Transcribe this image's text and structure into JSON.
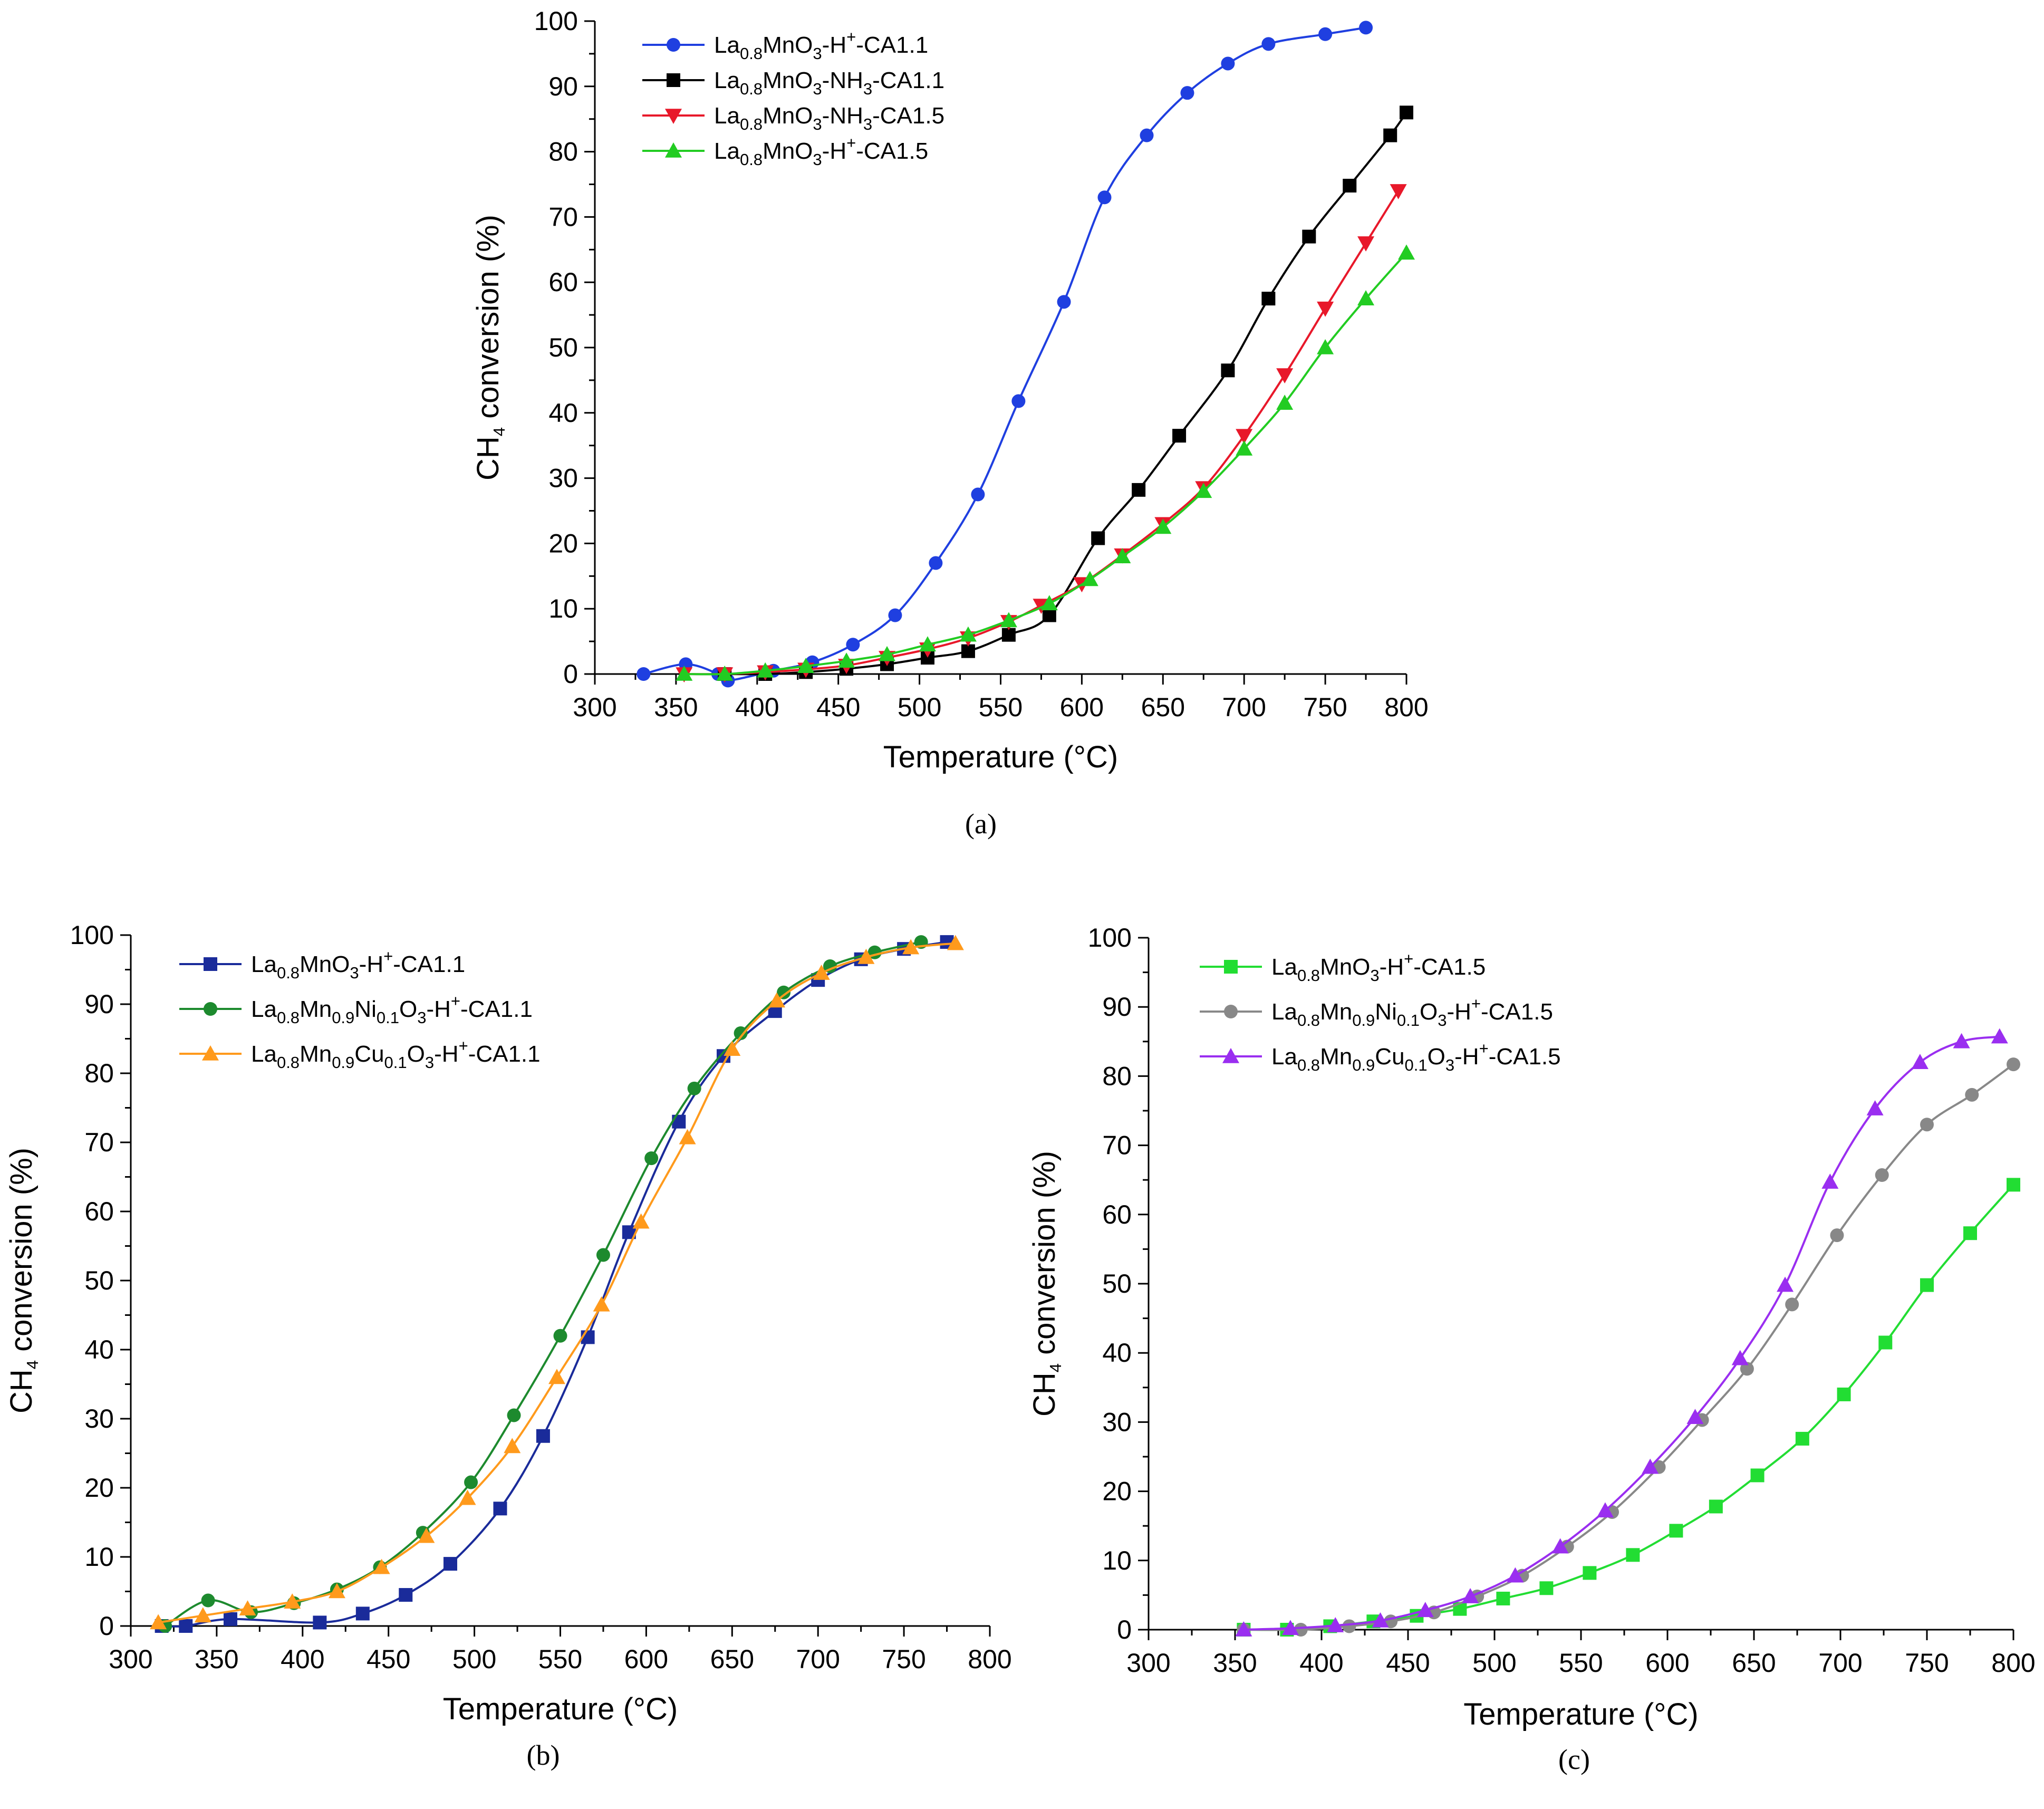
{
  "figure": {
    "panel_labels": [
      "(a)",
      "(b)",
      "(c)"
    ]
  },
  "chart_data": [
    {
      "panel": "(a)",
      "type": "line",
      "xlabel": "Temperature (°C)",
      "ylabel": "CH4 conversion (%)",
      "ylabel_parts": [
        "CH",
        "4",
        " conversion (%)"
      ],
      "xlim": [
        300,
        800
      ],
      "ylim": [
        0,
        100
      ],
      "xticks": [
        300,
        350,
        400,
        450,
        500,
        550,
        600,
        650,
        700,
        750,
        800
      ],
      "yticks": [
        0,
        10,
        20,
        30,
        40,
        50,
        60,
        70,
        80,
        90,
        100
      ],
      "grid": false,
      "legend_position": "top-left",
      "series": [
        {
          "name": "La0.8MnO3-H+-CA1.1",
          "label_parts": [
            [
              "La",
              "n"
            ],
            [
              "0.8",
              "sub"
            ],
            [
              "MnO",
              "n"
            ],
            [
              "3",
              "sub"
            ],
            [
              "-H",
              "n"
            ],
            [
              "+",
              "sup"
            ],
            [
              "-CA1.1",
              "n"
            ]
          ],
          "color": "#1f3fe0",
          "marker": "circle",
          "x": [
            330,
            356,
            376,
            382,
            410,
            434,
            459,
            485,
            510,
            536,
            561,
            589,
            614,
            640,
            665,
            690,
            715,
            750,
            775
          ],
          "y": [
            0.0,
            1.5,
            0.0,
            -1.0,
            0.5,
            1.8,
            4.5,
            9.0,
            17.0,
            27.5,
            41.8,
            57.0,
            73.0,
            82.5,
            89.0,
            93.5,
            96.5,
            98.0,
            99.0
          ]
        },
        {
          "name": "La0.8MnO3-NH3-CA1.1",
          "label_parts": [
            [
              "La",
              "n"
            ],
            [
              "0.8",
              "sub"
            ],
            [
              "MnO",
              "n"
            ],
            [
              "3",
              "sub"
            ],
            [
              "-NH",
              "n"
            ],
            [
              "3",
              "sub"
            ],
            [
              "-CA1.1",
              "n"
            ]
          ],
          "color": "#000000",
          "marker": "square",
          "x": [
            380,
            405,
            430,
            455,
            480,
            505,
            530,
            555,
            580,
            610,
            635,
            660,
            690,
            715,
            740,
            765,
            790,
            800
          ],
          "y": [
            0.0,
            0.0,
            0.3,
            0.8,
            1.5,
            2.5,
            3.5,
            6.0,
            9.0,
            20.8,
            28.2,
            36.5,
            46.5,
            57.5,
            67.0,
            74.8,
            82.5,
            86.0
          ]
        },
        {
          "name": "La0.8MnO3-NH3-CA1.5",
          "label_parts": [
            [
              "La",
              "n"
            ],
            [
              "0.8",
              "sub"
            ],
            [
              "MnO",
              "n"
            ],
            [
              "3",
              "sub"
            ],
            [
              "-NH",
              "n"
            ],
            [
              "3",
              "sub"
            ],
            [
              "-CA1.5",
              "n"
            ]
          ],
          "color": "#e8182a",
          "marker": "triangle-down",
          "x": [
            355,
            380,
            405,
            430,
            455,
            480,
            505,
            530,
            555,
            575,
            600,
            625,
            650,
            675,
            700,
            725,
            750,
            775,
            795
          ],
          "y": [
            0.0,
            0.0,
            0.3,
            0.7,
            1.3,
            2.5,
            3.8,
            5.5,
            8.0,
            10.5,
            13.8,
            18.2,
            23.0,
            28.5,
            36.5,
            45.8,
            56.0,
            66.0,
            74.0
          ]
        },
        {
          "name": "La0.8MnO3-H+-CA1.5",
          "label_parts": [
            [
              "La",
              "n"
            ],
            [
              "0.8",
              "sub"
            ],
            [
              "MnO",
              "n"
            ],
            [
              "3",
              "sub"
            ],
            [
              "-H",
              "n"
            ],
            [
              "+",
              "sup"
            ],
            [
              "-CA1.5",
              "n"
            ]
          ],
          "color": "#22cc22",
          "marker": "triangle-up",
          "x": [
            355,
            380,
            405,
            430,
            455,
            480,
            505,
            530,
            555,
            580,
            605,
            625,
            650,
            675,
            700,
            725,
            750,
            775,
            800
          ],
          "y": [
            0.0,
            0.0,
            0.5,
            1.2,
            2.0,
            3.0,
            4.5,
            6.0,
            8.2,
            10.8,
            14.5,
            18.0,
            22.5,
            28.0,
            34.5,
            41.5,
            50.0,
            57.5,
            64.5
          ]
        }
      ]
    },
    {
      "panel": "(b)",
      "type": "line",
      "xlabel": "Temperature (°C)",
      "ylabel": "CH4 conversion (%)",
      "ylabel_parts": [
        "CH",
        "4",
        " conversion (%)"
      ],
      "xlim": [
        300,
        800
      ],
      "ylim": [
        0,
        100
      ],
      "xticks": [
        300,
        350,
        400,
        450,
        500,
        550,
        600,
        650,
        700,
        750,
        800
      ],
      "yticks": [
        0,
        10,
        20,
        30,
        40,
        50,
        60,
        70,
        80,
        90,
        100
      ],
      "grid": false,
      "legend_position": "top-left",
      "series": [
        {
          "name": "La0.8MnO3-H+-CA1.1",
          "label_parts": [
            [
              "La",
              "n"
            ],
            [
              "0.8",
              "sub"
            ],
            [
              "MnO",
              "n"
            ],
            [
              "3",
              "sub"
            ],
            [
              "-H",
              "n"
            ],
            [
              "+",
              "sup"
            ],
            [
              "-CA1.1",
              "n"
            ]
          ],
          "color": "#1a2b9a",
          "marker": "square",
          "x": [
            318,
            332,
            358,
            410,
            435,
            460,
            486,
            515,
            540,
            566,
            590,
            619,
            645,
            675,
            700,
            725,
            750,
            775
          ],
          "y": [
            0.0,
            0.0,
            1.0,
            0.5,
            1.8,
            4.5,
            9.0,
            17.0,
            27.5,
            41.8,
            57.0,
            73.0,
            82.5,
            89.0,
            93.5,
            96.5,
            98.0,
            99.0
          ]
        },
        {
          "name": "La0.8Mn0.9Ni0.1O3-H+-CA1.1",
          "label_parts": [
            [
              "La",
              "n"
            ],
            [
              "0.8",
              "sub"
            ],
            [
              "Mn",
              "n"
            ],
            [
              "0.9",
              "sub"
            ],
            [
              "Ni",
              "n"
            ],
            [
              "0.1",
              "sub"
            ],
            [
              "O",
              "n"
            ],
            [
              "3",
              "sub"
            ],
            [
              "-H",
              "n"
            ],
            [
              "+",
              "sup"
            ],
            [
              "-CA1.1",
              "n"
            ]
          ],
          "color": "#1d8a2e",
          "marker": "circle",
          "x": [
            320,
            345,
            370,
            395,
            420,
            445,
            470,
            498,
            523,
            550,
            575,
            603,
            628,
            655,
            680,
            707,
            733,
            760
          ],
          "y": [
            0.0,
            3.7,
            2.0,
            3.3,
            5.3,
            8.5,
            13.5,
            20.8,
            30.5,
            42.0,
            53.7,
            67.7,
            77.8,
            85.8,
            91.7,
            95.5,
            97.5,
            99.0
          ]
        },
        {
          "name": "La0.8Mn0.9Cu0.1O3-H+-CA1.1",
          "label_parts": [
            [
              "La",
              "n"
            ],
            [
              "0.8",
              "sub"
            ],
            [
              "Mn",
              "n"
            ],
            [
              "0.9",
              "sub"
            ],
            [
              "Cu",
              "n"
            ],
            [
              "0.1",
              "sub"
            ],
            [
              "O",
              "n"
            ],
            [
              "3",
              "sub"
            ],
            [
              "-H",
              "n"
            ],
            [
              "+",
              "sup"
            ],
            [
              "-CA1.1",
              "n"
            ]
          ],
          "color": "#ff9a1c",
          "marker": "triangle-up",
          "x": [
            316,
            342,
            368,
            394,
            420,
            446,
            472,
            496,
            522,
            548,
            574,
            597,
            624,
            650,
            676,
            702,
            728,
            754,
            780
          ],
          "y": [
            0.5,
            1.5,
            2.5,
            3.5,
            5.0,
            8.5,
            13.0,
            18.5,
            26.0,
            36.0,
            46.5,
            58.5,
            70.7,
            83.5,
            90.5,
            94.5,
            96.8,
            98.2,
            98.8
          ]
        }
      ]
    },
    {
      "panel": "(c)",
      "type": "line",
      "xlabel": "Temperature (°C)",
      "ylabel": "CH4 conversion (%)",
      "ylabel_parts": [
        "CH",
        "4",
        " conversion (%)"
      ],
      "xlim": [
        300,
        800
      ],
      "ylim": [
        0,
        100
      ],
      "xticks": [
        300,
        350,
        400,
        450,
        500,
        550,
        600,
        650,
        700,
        750,
        800
      ],
      "yticks": [
        0,
        10,
        20,
        30,
        40,
        50,
        60,
        70,
        80,
        90,
        100
      ],
      "grid": false,
      "legend_position": "top-left",
      "series": [
        {
          "name": "La0.8MnO3-H+-CA1.5",
          "label_parts": [
            [
              "La",
              "n"
            ],
            [
              "0.8",
              "sub"
            ],
            [
              "MnO",
              "n"
            ],
            [
              "3",
              "sub"
            ],
            [
              "-H",
              "n"
            ],
            [
              "+",
              "sup"
            ],
            [
              "-CA1.5",
              "n"
            ]
          ],
          "color": "#22dd33",
          "marker": "square",
          "x": [
            355,
            380,
            405,
            430,
            455,
            480,
            505,
            530,
            555,
            580,
            605,
            628,
            652,
            678,
            702,
            726,
            750,
            775,
            800
          ],
          "y": [
            0.0,
            0.0,
            0.5,
            1.2,
            2.0,
            3.0,
            4.5,
            6.0,
            8.2,
            10.8,
            14.3,
            17.8,
            22.3,
            27.6,
            34.0,
            41.5,
            49.8,
            57.3,
            64.3
          ]
        },
        {
          "name": "La0.8Mn0.9Ni0.1O3-H+-CA1.5",
          "label_parts": [
            [
              "La",
              "n"
            ],
            [
              "0.8",
              "sub"
            ],
            [
              "Mn",
              "n"
            ],
            [
              "0.9",
              "sub"
            ],
            [
              "Ni",
              "n"
            ],
            [
              "0.1",
              "sub"
            ],
            [
              "O",
              "n"
            ],
            [
              "3",
              "sub"
            ],
            [
              "-H",
              "n"
            ],
            [
              "+",
              "sup"
            ],
            [
              "-CA1.5",
              "n"
            ]
          ],
          "color": "#888888",
          "marker": "circle",
          "x": [
            355,
            388,
            416,
            440,
            465,
            490,
            516,
            542,
            568,
            595,
            620,
            646,
            672,
            698,
            724,
            750,
            776,
            800
          ],
          "y": [
            0.0,
            0.0,
            0.5,
            1.2,
            2.5,
            4.8,
            7.8,
            12.0,
            17.0,
            23.5,
            30.3,
            37.7,
            47.0,
            57.0,
            65.7,
            73.0,
            77.3,
            81.7
          ]
        },
        {
          "name": "La0.8Mn0.9Cu0.1O3-H+-CA1.5",
          "label_parts": [
            [
              "La",
              "n"
            ],
            [
              "0.8",
              "sub"
            ],
            [
              "Mn",
              "n"
            ],
            [
              "0.9",
              "sub"
            ],
            [
              "Cu",
              "n"
            ],
            [
              "0.1",
              "sub"
            ],
            [
              "O",
              "n"
            ],
            [
              "3",
              "sub"
            ],
            [
              "-H",
              "n"
            ],
            [
              "+",
              "sup"
            ],
            [
              "-CA1.5",
              "n"
            ]
          ],
          "color": "#9a2ef0",
          "marker": "triangle-up",
          "x": [
            355,
            382,
            408,
            434,
            460,
            486,
            512,
            538,
            564,
            590,
            616,
            642,
            668,
            694,
            720,
            746,
            770,
            792
          ],
          "y": [
            0.0,
            0.2,
            0.6,
            1.3,
            2.8,
            4.8,
            7.8,
            12.0,
            17.2,
            23.5,
            30.7,
            39.2,
            49.8,
            64.7,
            75.3,
            82.0,
            85.0,
            85.7
          ]
        }
      ]
    }
  ]
}
